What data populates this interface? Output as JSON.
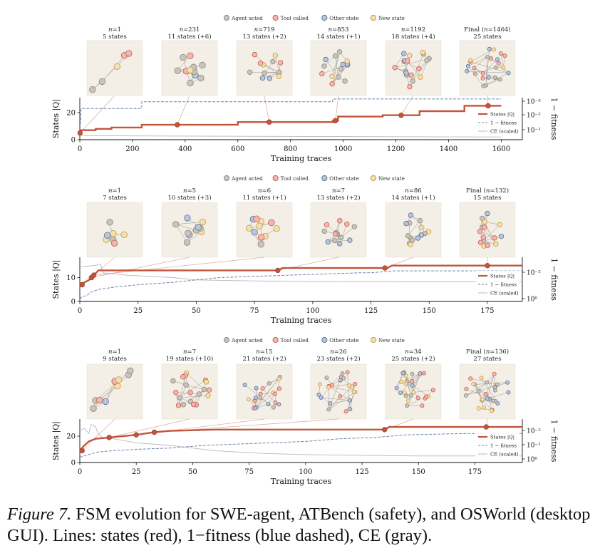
{
  "legend_top": [
    {
      "label": "Agent acted",
      "fill": "#c9c4bb",
      "stroke": "#8d8a83"
    },
    {
      "label": "Tool called",
      "fill": "#f1b8b0",
      "stroke": "#c85a4a"
    },
    {
      "label": "Other state",
      "fill": "#b8c6dc",
      "stroke": "#5a6f90"
    },
    {
      "label": "New state",
      "fill": "#f3dfb4",
      "stroke": "#c99a3a"
    }
  ],
  "line_legend": [
    "States |Q|",
    "1 − fitness",
    "CE (scaled)"
  ],
  "colors": {
    "states": "#c2553a",
    "fitness": "#6f86ad",
    "ce": "#b8b8b8",
    "panel": "#f3efe6"
  },
  "caption": {
    "label": "Figure 7.",
    "text": " FSM evolution for SWE-agent, ATBench (safety), and OSWorld (desktop GUI). Lines: states (red), 1−fitness (blue dashed), CE (gray)."
  },
  "chart_data": [
    {
      "type": "line",
      "name": "SWE-agent",
      "xlabel": "Training traces",
      "ylabel": "States |Q|",
      "y2label": "1 − fitness",
      "xlim": [
        0,
        1680
      ],
      "xticks": [
        0,
        200,
        400,
        600,
        800,
        1000,
        1200,
        1400,
        1600
      ],
      "ylim": [
        0,
        31
      ],
      "yticks": [
        0,
        20
      ],
      "y2ticks": [
        "10⁻³",
        "10⁻²",
        "10⁻¹"
      ],
      "snapshots": [
        {
          "n_label": "n=1",
          "states_label": "5 states",
          "trace": 1,
          "states": 5
        },
        {
          "n_label": "n=231",
          "states_label": "11 states (+6)",
          "trace": 370,
          "states": 11
        },
        {
          "n_label": "n=719",
          "states_label": "13 states (+2)",
          "trace": 719,
          "states": 13
        },
        {
          "n_label": "n=853",
          "states_label": "14 states (+1)",
          "trace": 970,
          "states": 14
        },
        {
          "n_label": "n=1192",
          "states_label": "18 states (+4)",
          "trace": 1220,
          "states": 18
        },
        {
          "n_label": "Final (n=1464)",
          "states_label": "25 states",
          "trace": 1550,
          "states": 25
        }
      ],
      "states_series": [
        [
          0,
          5
        ],
        [
          5,
          7
        ],
        [
          60,
          7
        ],
        [
          60,
          8
        ],
        [
          120,
          8
        ],
        [
          120,
          9
        ],
        [
          235,
          9
        ],
        [
          235,
          11
        ],
        [
          370,
          11
        ],
        [
          370,
          11
        ],
        [
          600,
          11
        ],
        [
          600,
          13
        ],
        [
          960,
          13
        ],
        [
          960,
          14
        ],
        [
          980,
          14
        ],
        [
          980,
          17
        ],
        [
          1150,
          17
        ],
        [
          1150,
          18
        ],
        [
          1290,
          18
        ],
        [
          1290,
          21
        ],
        [
          1460,
          21
        ],
        [
          1460,
          25
        ],
        [
          1600,
          25
        ]
      ],
      "fitness_series": [
        [
          0,
          5
        ],
        [
          5,
          23
        ],
        [
          235,
          23
        ],
        [
          235,
          28
        ],
        [
          960,
          28
        ],
        [
          960,
          30
        ],
        [
          1600,
          30
        ]
      ],
      "ce_series": [
        [
          0,
          3.2
        ],
        [
          50,
          3.0
        ],
        [
          200,
          2.8
        ],
        [
          600,
          2.5
        ],
        [
          1000,
          2.3
        ],
        [
          1600,
          2.0
        ]
      ]
    },
    {
      "type": "line",
      "name": "ATBench",
      "xlabel": "Training traces",
      "ylabel": "States |Q|",
      "y2label": "1 − fitness",
      "xlim": [
        0,
        190
      ],
      "xticks": [
        0,
        25,
        50,
        75,
        100,
        125,
        150,
        175
      ],
      "ylim": [
        0,
        18.5
      ],
      "yticks": [
        0,
        10
      ],
      "y2ticks": [
        "10⁻²",
        "10⁰"
      ],
      "snapshots": [
        {
          "n_label": "n=1",
          "states_label": "7 states",
          "trace": 1,
          "states": 7
        },
        {
          "n_label": "n=5",
          "states_label": "10 states (+3)",
          "trace": 5,
          "states": 10
        },
        {
          "n_label": "n=6",
          "states_label": "11 states (+1)",
          "trace": 6,
          "states": 11
        },
        {
          "n_label": "n=7",
          "states_label": "13 states (+2)",
          "trace": 85,
          "states": 13
        },
        {
          "n_label": "n=86",
          "states_label": "14 states (+1)",
          "trace": 131,
          "states": 14
        },
        {
          "n_label": "Final (n=132)",
          "states_label": "15 states",
          "trace": 175,
          "states": 15
        }
      ],
      "states_series": [
        [
          0,
          7
        ],
        [
          2,
          8
        ],
        [
          4,
          9
        ],
        [
          5,
          10
        ],
        [
          6,
          11
        ],
        [
          7,
          12
        ],
        [
          8,
          13
        ],
        [
          85,
          13
        ],
        [
          87,
          14
        ],
        [
          132,
          14
        ],
        [
          134,
          15
        ],
        [
          190,
          15
        ]
      ],
      "fitness_series": [
        [
          0,
          1
        ],
        [
          1,
          2
        ],
        [
          3,
          2.5
        ],
        [
          5,
          4
        ],
        [
          8,
          5
        ],
        [
          15,
          6
        ],
        [
          25,
          7
        ],
        [
          40,
          8
        ],
        [
          50,
          9
        ],
        [
          60,
          10
        ],
        [
          75,
          10.5
        ],
        [
          90,
          11
        ],
        [
          105,
          11.5
        ],
        [
          120,
          12
        ],
        [
          125,
          12
        ],
        [
          135,
          12.8
        ],
        [
          190,
          12.8
        ]
      ],
      "ce_series": [
        [
          0,
          14.5
        ],
        [
          6,
          15
        ],
        [
          9,
          15.5
        ],
        [
          10,
          12
        ],
        [
          20,
          11
        ],
        [
          30,
          10.5
        ],
        [
          40,
          10
        ],
        [
          50,
          9
        ],
        [
          75,
          8.6
        ],
        [
          100,
          8.3
        ],
        [
          150,
          8.2
        ],
        [
          190,
          8.2
        ]
      ]
    },
    {
      "type": "line",
      "name": "OSWorld",
      "xlabel": "Training traces",
      "ylabel": "States |Q|",
      "y2label": "1 − fitness",
      "xlim": [
        0,
        196
      ],
      "xticks": [
        0,
        25,
        50,
        75,
        100,
        125,
        150,
        175
      ],
      "ylim": [
        0,
        33
      ],
      "yticks": [
        0,
        20
      ],
      "y2ticks": [
        "10⁻²",
        "10⁻¹",
        "10⁰"
      ],
      "snapshots": [
        {
          "n_label": "n=1",
          "states_label": "9 states",
          "trace": 1,
          "states": 9
        },
        {
          "n_label": "n=7",
          "states_label": "19 states (+10)",
          "trace": 13,
          "states": 19
        },
        {
          "n_label": "n=15",
          "states_label": "21 states (+2)",
          "trace": 25,
          "states": 21
        },
        {
          "n_label": "n=26",
          "states_label": "23 states (+2)",
          "trace": 33,
          "states": 23
        },
        {
          "n_label": "n=34",
          "states_label": "25 states (+2)",
          "trace": 135,
          "states": 25
        },
        {
          "n_label": "Final (n=136)",
          "states_label": "27 states",
          "trace": 180,
          "states": 27
        }
      ],
      "states_series": [
        [
          0,
          9
        ],
        [
          2,
          13
        ],
        [
          4,
          16
        ],
        [
          7,
          18
        ],
        [
          13,
          19
        ],
        [
          25,
          21
        ],
        [
          33,
          23
        ],
        [
          40,
          24
        ],
        [
          60,
          25
        ],
        [
          135,
          25
        ],
        [
          137,
          27
        ],
        [
          196,
          27
        ]
      ],
      "fitness_series": [
        [
          0,
          4
        ],
        [
          4,
          6
        ],
        [
          8,
          8
        ],
        [
          15,
          9
        ],
        [
          25,
          10
        ],
        [
          40,
          11
        ],
        [
          55,
          13
        ],
        [
          70,
          14
        ],
        [
          85,
          15
        ],
        [
          100,
          16
        ],
        [
          115,
          18
        ],
        [
          130,
          19
        ],
        [
          145,
          21
        ],
        [
          170,
          22
        ],
        [
          196,
          22
        ]
      ],
      "ce_series": [
        [
          0,
          24
        ],
        [
          2,
          26
        ],
        [
          4,
          22
        ],
        [
          5,
          29
        ],
        [
          7,
          27
        ],
        [
          8,
          22
        ],
        [
          10,
          19
        ],
        [
          15,
          18
        ],
        [
          25,
          15
        ],
        [
          40,
          13
        ],
        [
          60,
          9
        ],
        [
          80,
          7
        ],
        [
          100,
          6
        ],
        [
          120,
          5.5
        ],
        [
          150,
          5
        ],
        [
          196,
          5
        ]
      ]
    }
  ]
}
